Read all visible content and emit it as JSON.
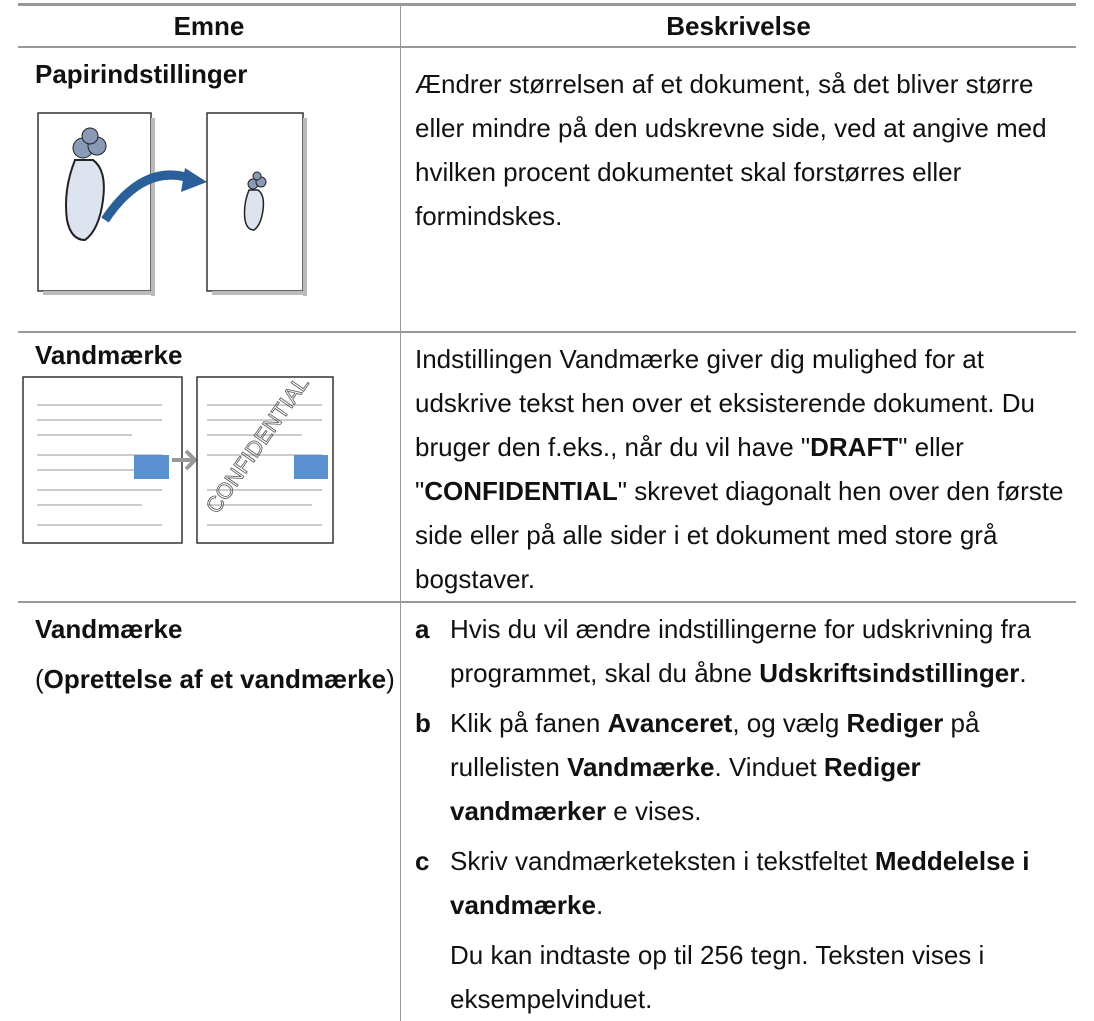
{
  "header": {
    "topic": "Emne",
    "description": "Beskrivelse"
  },
  "rows": [
    {
      "topic": [
        [
          {
            "text": "Papirindstillinger",
            "bold": true
          }
        ]
      ],
      "description": [
        [
          "Ændrer størrelsen af et dokument, så det bliver større eller mindre på den udskrevne side, ved at angive med hvilken procent dokumentet skal forstørres eller formindskes."
        ]
      ]
    },
    {
      "topic": [
        [
          {
            "text": "Vandmærke",
            "bold": true
          }
        ]
      ],
      "watermark": "CONFIDENTIAL",
      "description": [
        [
          "Indstillingen Vandmærke giver dig mulighed for at udskrive tekst hen over et eksisterende dokument. Du bruger den f.eks., når du vil have \"",
          {
            "text": "DRAFT",
            "bold": true
          },
          "\" eller \"",
          {
            "text": "CONFIDENTIAL",
            "bold": true
          },
          "\" skrevet diagonalt hen over den første side eller på alle sider i et dokument med store grå bogstaver."
        ]
      ]
    },
    {
      "topic": [
        [
          {
            "text": "Vandmærke",
            "bold": true
          }
        ],
        [
          "(",
          {
            "text": "Oprettelse af et vandmærke",
            "bold": true
          },
          ")"
        ]
      ],
      "steps": [
        {
          "marker": "a",
          "paragraphs": [
            [
              "Hvis du vil ændre indstillingerne for udskrivning fra programmet, skal du åbne ",
              {
                "text": "Udskriftsindstillinger",
                "bold": true
              },
              "."
            ]
          ]
        },
        {
          "marker": "b",
          "paragraphs": [
            [
              "Klik på fanen ",
              {
                "text": "Avanceret",
                "bold": true
              },
              ", og vælg ",
              {
                "text": "Rediger",
                "bold": true
              },
              " på rullelisten ",
              {
                "text": "Vandmærke",
                "bold": true
              },
              ". Vinduet ",
              {
                "text": "Rediger vandmærker",
                "bold": true
              },
              " e vises."
            ]
          ]
        },
        {
          "marker": "c",
          "paragraphs": [
            [
              "Skriv vandmærketeksten i tekstfeltet ",
              {
                "text": "Meddelelse i vandmærke",
                "bold": true
              },
              "."
            ],
            [
              "Du kan indtaste op til 256 tegn. Teksten vises i eksempelvinduet."
            ]
          ]
        }
      ]
    }
  ]
}
